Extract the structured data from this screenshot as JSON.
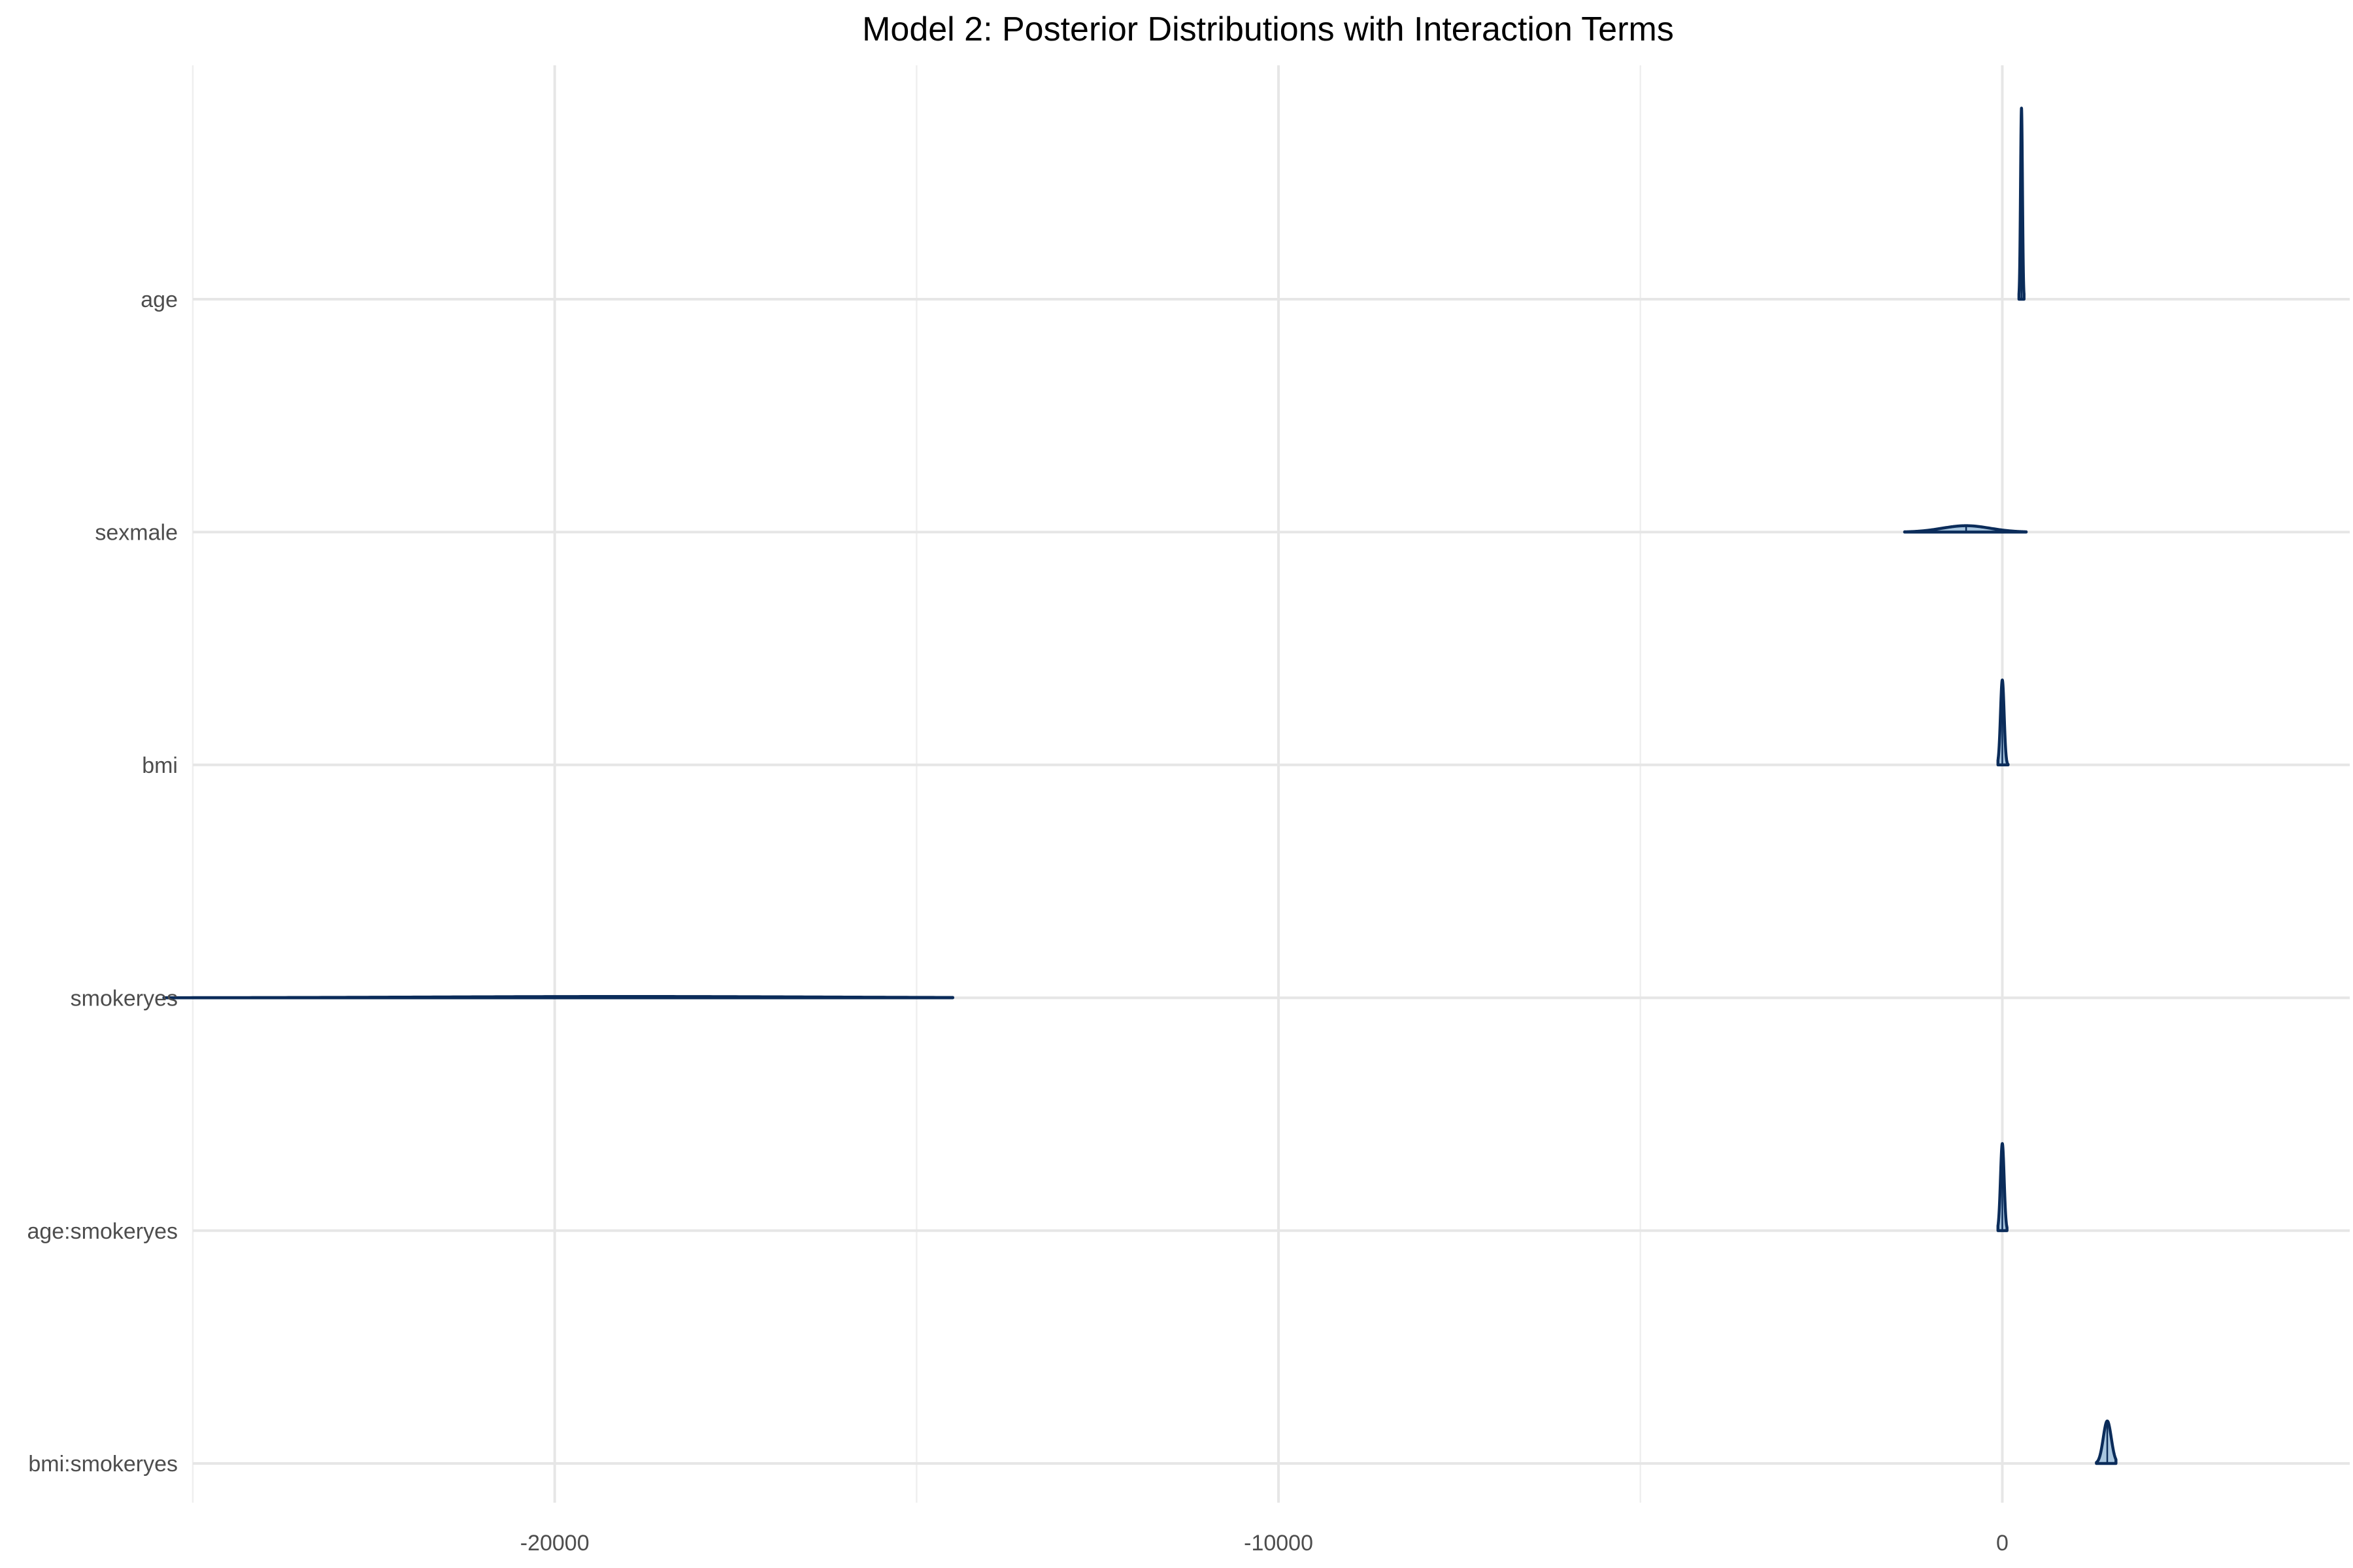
{
  "chart_data": {
    "type": "area",
    "subtype": "posterior-density-ridges",
    "title": "Model 2: Posterior Distributions with Interaction Terms",
    "xlabel": "",
    "ylabel": "",
    "xlim": [
      -25000,
      4800
    ],
    "x_ticks": [
      -20000,
      -10000,
      0
    ],
    "x_tick_labels": [
      "-20000",
      "-10000",
      "0"
    ],
    "x_minor_ticks": [
      -25000,
      -15000,
      -5000
    ],
    "categories": [
      "age",
      "sexmale",
      "bmi",
      "smokeryes",
      "age:smokeryes",
      "bmi:smokeryes"
    ],
    "grid": true,
    "fill_color": "#a8c6df",
    "line_color": "#0b2c5a",
    "series": [
      {
        "name": "age",
        "mean": 265,
        "sd": 13,
        "min": 230,
        "max": 300,
        "peak_height": 0.9
      },
      {
        "name": "sexmale",
        "mean": -500,
        "sd": 330,
        "min": -1350,
        "max": 330,
        "peak_height": 0.03
      },
      {
        "name": "bmi",
        "mean": 0,
        "sd": 25,
        "min": -60,
        "max": 80,
        "peak_height": 0.4
      },
      {
        "name": "smokeryes",
        "mean": -19000,
        "sd": 2600,
        "min": -25400,
        "max": -14500,
        "peak_height": 0.006
      },
      {
        "name": "age:smokeryes",
        "mean": 0,
        "sd": 25,
        "min": -60,
        "max": 65,
        "peak_height": 0.41
      },
      {
        "name": "bmi:smokeryes",
        "mean": 1450,
        "sd": 55,
        "min": 1300,
        "max": 1570,
        "peak_height": 0.2
      }
    ]
  }
}
